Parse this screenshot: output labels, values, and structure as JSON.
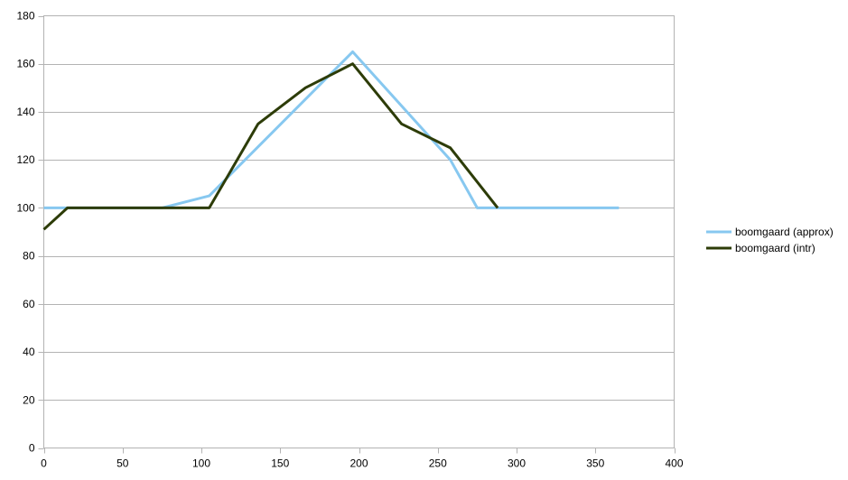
{
  "chart_data": {
    "type": "line",
    "title": "",
    "xlabel": "",
    "ylabel": "",
    "xlim": [
      0,
      400
    ],
    "ylim": [
      0,
      180
    ],
    "x_ticks": [
      0,
      50,
      100,
      150,
      200,
      250,
      300,
      350,
      400
    ],
    "y_ticks": [
      0,
      20,
      40,
      60,
      80,
      100,
      120,
      140,
      160,
      180
    ],
    "grid": "horizontal",
    "legend_position": "right",
    "series": [
      {
        "name": "boomgaard (approx)",
        "color": "#87c8f0",
        "points": [
          [
            0,
            100
          ],
          [
            75,
            100
          ],
          [
            105,
            105
          ],
          [
            196,
            165
          ],
          [
            258,
            120
          ],
          [
            275,
            100
          ],
          [
            365,
            100
          ]
        ]
      },
      {
        "name": "boomgaard (intr)",
        "color": "#2d3c08",
        "points": [
          [
            0,
            91
          ],
          [
            15,
            100
          ],
          [
            105,
            100
          ],
          [
            136,
            135
          ],
          [
            166,
            150
          ],
          [
            196,
            160
          ],
          [
            227,
            135
          ],
          [
            258,
            125
          ],
          [
            288,
            100
          ]
        ]
      }
    ]
  }
}
